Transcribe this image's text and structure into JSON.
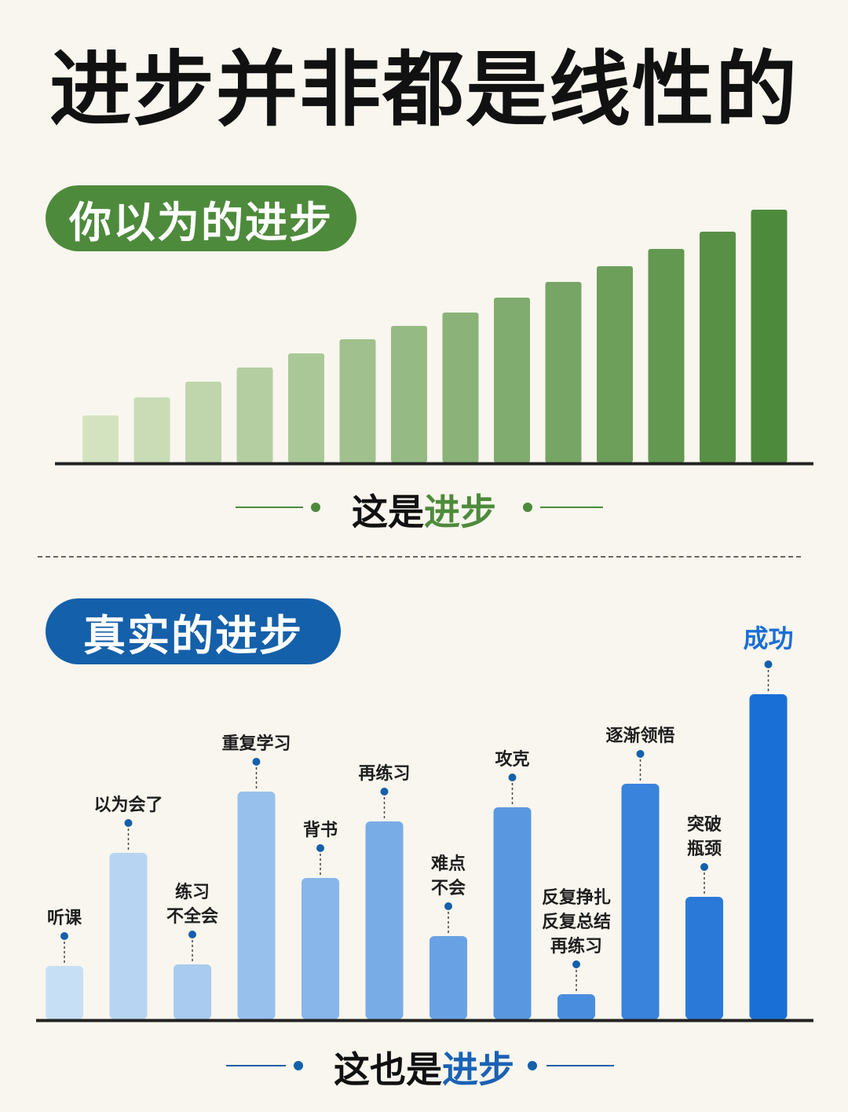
{
  "title": "进步并非都是线性的",
  "section1": {
    "pill": "你以为的进步",
    "caption_prefix": "这是",
    "caption_highlight": "进步"
  },
  "section2": {
    "pill": "真实的进步",
    "caption_prefix": "这也是",
    "caption_highlight": "进步"
  },
  "colors": {
    "green_dark": "#4e8a3c",
    "green_light": "#d3e3c0",
    "blue_dark": "#1a6fd6",
    "blue_light": "#c7dff5",
    "blue_accent": "#1560aa"
  },
  "chart_data": [
    {
      "type": "bar",
      "values": [
        60,
        83,
        103,
        121,
        139,
        157,
        174,
        191,
        210,
        230,
        250,
        272,
        294,
        322
      ],
      "ylim": [
        0,
        340
      ],
      "grid": false
    },
    {
      "type": "bar",
      "categories": [
        "听课",
        "以为会了",
        "练习\n不全会",
        "重复学习",
        "背书",
        "再练习",
        "难点\n不会",
        "攻克",
        "反复挣扎\n反复总结\n再练习",
        "逐渐领悟",
        "突破\n瓶颈",
        "成功"
      ],
      "values": [
        68,
        212,
        70,
        290,
        180,
        252,
        106,
        270,
        32,
        300,
        156,
        414
      ],
      "ylim": [
        0,
        460
      ],
      "grid": false
    }
  ]
}
